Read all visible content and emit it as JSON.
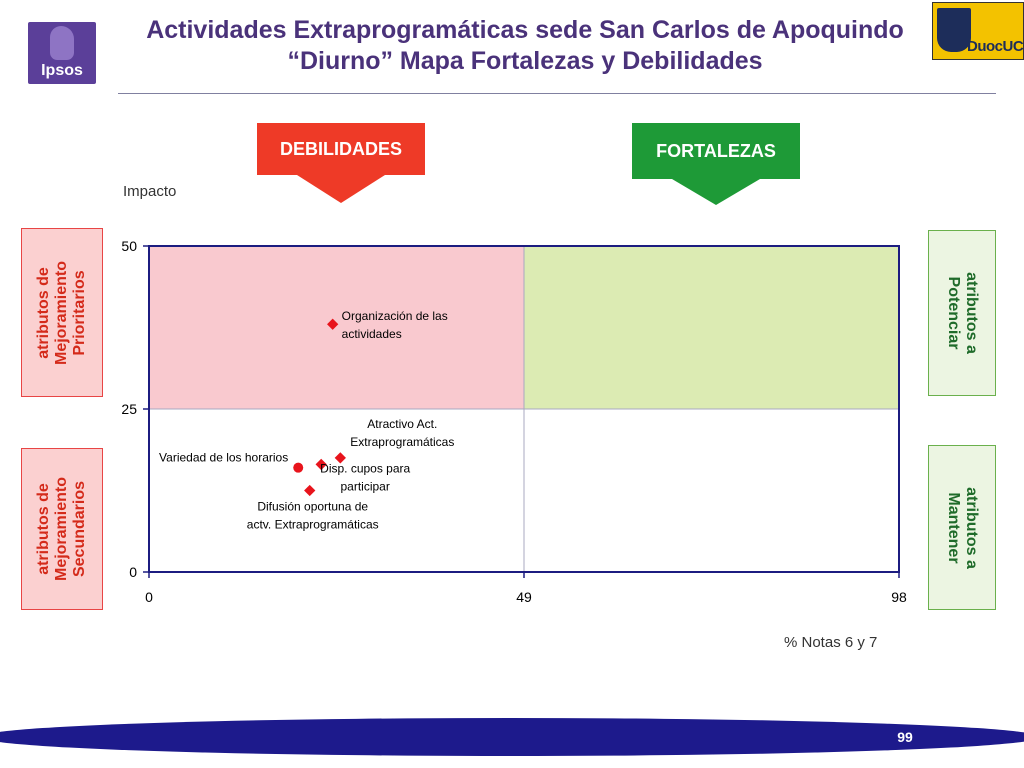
{
  "header": {
    "title_line_1": "Actividades Extraprogramáticas sede San Carlos de Apoquindo",
    "title_line_2": "“Diurno” Mapa Fortalezas y Debilidades",
    "left_logo_text": "Ipsos",
    "right_logo_text": "DuocUC"
  },
  "callouts": {
    "debilidades": "DEBILIDADES",
    "fortalezas": "FORTALEZAS"
  },
  "quadrant_boxes": {
    "prioritarios": [
      "atributos de",
      "Mejoramiento",
      "Prioritarios"
    ],
    "secundarios": [
      "atributos de",
      "Mejoramiento",
      "Secundarios"
    ],
    "potenciar": [
      "atributos a",
      "Potenciar"
    ],
    "mantener": [
      "atributos a",
      "Mantener"
    ]
  },
  "colors": {
    "title": "#4a327a",
    "debilidades": "#ee3a27",
    "fortalezas": "#1e9a37",
    "quadrant_top_left": "#f9c9cf",
    "quadrant_top_right": "#dcebb3",
    "marker": "#e8141c",
    "footer": "#1d1a8c"
  },
  "chart_data": {
    "type": "scatter",
    "ylabel": "Impacto",
    "xlabel": "% Notas 6 y 7",
    "xlim": [
      0,
      98
    ],
    "ylim": [
      0,
      50
    ],
    "x_ticks": [
      0,
      49,
      98
    ],
    "y_ticks": [
      0,
      25,
      50
    ],
    "x_threshold": 49,
    "y_threshold": 25,
    "grid": false,
    "points": [
      {
        "label_lines": [
          "Organización de las",
          "actividades"
        ],
        "x": 24,
        "y": 38,
        "marker": "diamond"
      },
      {
        "label_lines": [
          "Atractivo Act.",
          "Extraprogramáticas"
        ],
        "x": 25,
        "y": 17.5,
        "marker": "diamond"
      },
      {
        "label_lines": [
          "Disp. cupos para",
          "participar"
        ],
        "x": 22.5,
        "y": 16.5,
        "marker": "diamond"
      },
      {
        "label_lines": [
          "Variedad de los horarios"
        ],
        "x": 19.5,
        "y": 16,
        "marker": "circle"
      },
      {
        "label_lines": [
          "Difusión oportuna de",
          "actv. Extraprogramáticas"
        ],
        "x": 21,
        "y": 12.5,
        "marker": "diamond"
      }
    ]
  },
  "footer": {
    "page_number": "99"
  }
}
